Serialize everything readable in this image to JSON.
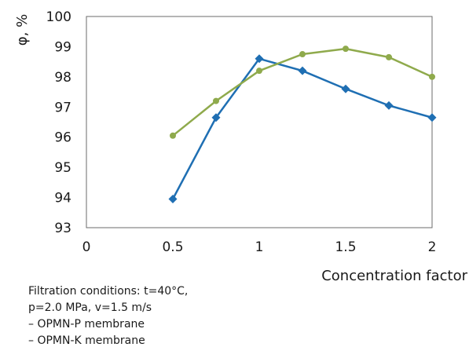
{
  "chart_data": {
    "type": "line",
    "xlabel": "Concentration factor",
    "ylabel": "φ, %",
    "xlim": [
      0,
      2
    ],
    "ylim": [
      93,
      100
    ],
    "x_ticks": [
      "0",
      "0.5",
      "1",
      "1.5",
      "2"
    ],
    "y_ticks": [
      "93",
      "94",
      "95",
      "96",
      "97",
      "98",
      "99",
      "100"
    ],
    "grid": false,
    "series": [
      {
        "marker": "diamond",
        "color": "#1f6fb3",
        "x": [
          0.5,
          0.75,
          1.0,
          1.25,
          1.5,
          1.75,
          2.0
        ],
        "y": [
          93.95,
          96.65,
          98.6,
          98.2,
          97.6,
          97.05,
          96.65
        ]
      },
      {
        "marker": "circle",
        "color": "#8faa4c",
        "x": [
          0.5,
          0.75,
          1.0,
          1.25,
          1.5,
          1.75,
          2.0
        ],
        "y": [
          96.05,
          97.2,
          98.2,
          98.75,
          98.93,
          98.65,
          98.0
        ]
      }
    ]
  },
  "notes": {
    "line1": "Filtration conditions: t=40°C,",
    "line2": "p=2.0 MPa, v=1.5 m/s",
    "line3": "– OPMN-P membrane",
    "line4": "– OPMN-K membrane"
  }
}
